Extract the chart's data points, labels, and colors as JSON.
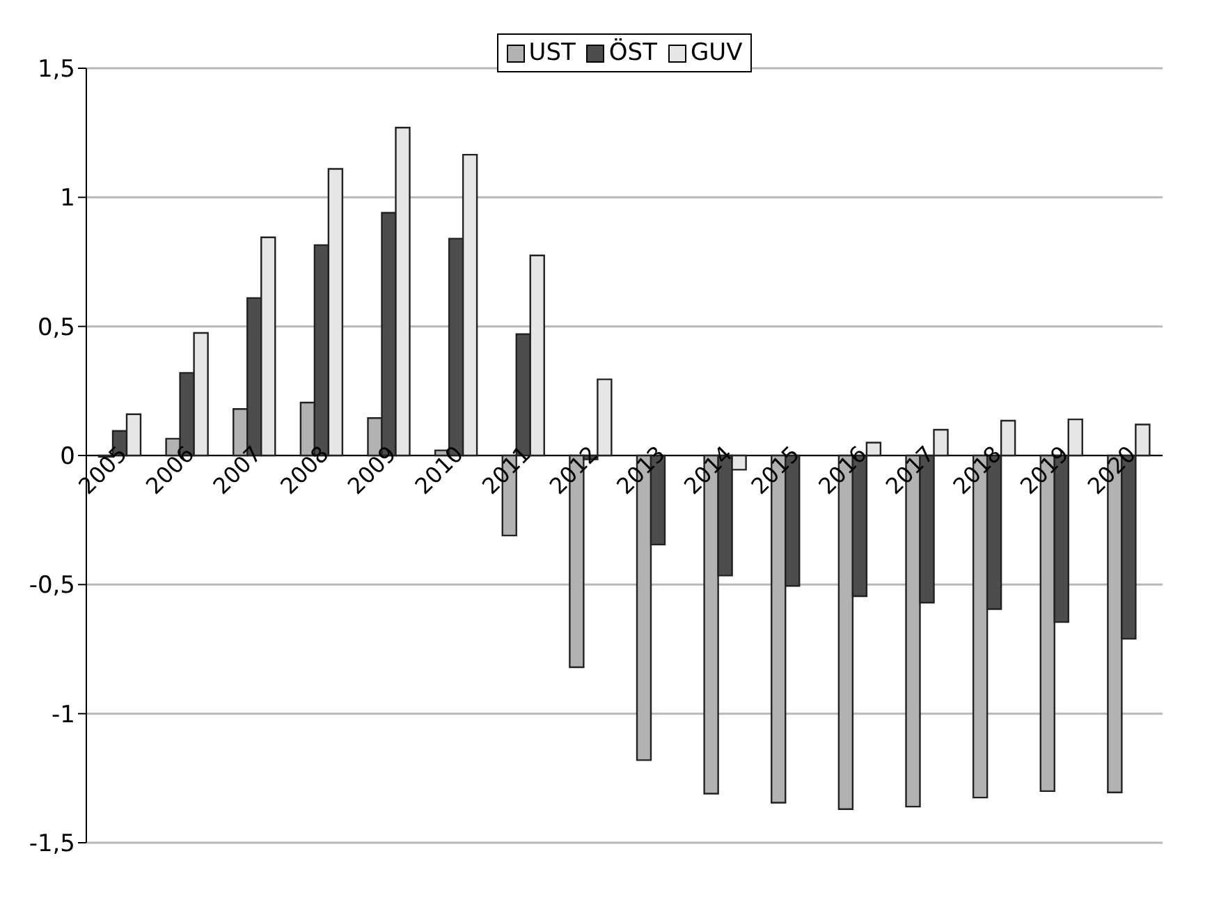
{
  "chart_data": {
    "type": "bar",
    "categories": [
      "2005",
      "2006",
      "2007",
      "2008",
      "2009",
      "2010",
      "2011",
      "2012",
      "2013",
      "2014",
      "2015",
      "2016",
      "2017",
      "2018",
      "2019",
      "2020"
    ],
    "series": [
      {
        "name": "UST",
        "color": "#b2b2b2",
        "values": [
          -0.005,
          0.065,
          0.18,
          0.205,
          0.145,
          0.02,
          -0.31,
          -0.82,
          -1.18,
          -1.31,
          -1.345,
          -1.37,
          -1.36,
          -1.325,
          -1.3,
          -1.305
        ]
      },
      {
        "name": "ÖST",
        "color": "#4d4d4d",
        "values": [
          0.095,
          0.32,
          0.61,
          0.815,
          0.94,
          0.84,
          0.47,
          -0.015,
          -0.345,
          -0.465,
          -0.505,
          -0.545,
          -0.57,
          -0.595,
          -0.645,
          -0.71
        ]
      },
      {
        "name": "GUV",
        "color": "#e6e6e6",
        "values": [
          0.16,
          0.475,
          0.845,
          1.11,
          1.27,
          1.165,
          0.775,
          0.295,
          0,
          -0.055,
          0,
          0.05,
          0.1,
          0.135,
          0.14,
          0.12
        ]
      }
    ],
    "ylim": [
      -1.5,
      1.5
    ],
    "yticks": [
      {
        "value": -1.5,
        "label": "-1,5"
      },
      -1,
      {
        "value": -0.5,
        "label": "-0,5"
      },
      0,
      {
        "value": 0.5,
        "label": "0,5"
      },
      1,
      {
        "value": 1.5,
        "label": "1,5"
      }
    ],
    "grid": "y",
    "legend": "top"
  }
}
